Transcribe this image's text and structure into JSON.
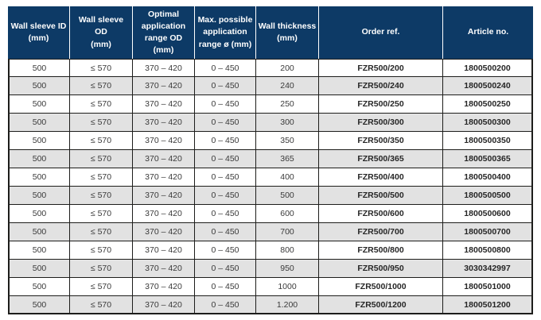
{
  "table": {
    "headers": [
      "Wall sleeve ID\n(mm)",
      "Wall sleeve OD\n(mm)",
      "Optimal\napplication\nrange OD\n(mm)",
      "Max. possible\napplication\nrange ø (mm)",
      "Wall thickness\n(mm)",
      "Order ref.",
      "Article no."
    ],
    "column_keys": [
      "wall-sleeve-id",
      "wall-sleeve-od",
      "optimal-application-range-od",
      "max-possible-application-range",
      "wall-thickness",
      "order-ref",
      "article-no"
    ],
    "bold_columns": [
      5,
      6
    ],
    "rows": [
      [
        "500",
        "≤ 570",
        "370 – 420",
        "0 – 450",
        "200",
        "FZR500/200",
        "1800500200"
      ],
      [
        "500",
        "≤ 570",
        "370 – 420",
        "0 – 450",
        "240",
        "FZR500/240",
        "1800500240"
      ],
      [
        "500",
        "≤ 570",
        "370 – 420",
        "0 – 450",
        "250",
        "FZR500/250",
        "1800500250"
      ],
      [
        "500",
        "≤ 570",
        "370 – 420",
        "0 – 450",
        "300",
        "FZR500/300",
        "1800500300"
      ],
      [
        "500",
        "≤ 570",
        "370 – 420",
        "0 – 450",
        "350",
        "FZR500/350",
        "1800500350"
      ],
      [
        "500",
        "≤ 570",
        "370 – 420",
        "0 – 450",
        "365",
        "FZR500/365",
        "1800500365"
      ],
      [
        "500",
        "≤ 570",
        "370 – 420",
        "0 – 450",
        "400",
        "FZR500/400",
        "1800500400"
      ],
      [
        "500",
        "≤ 570",
        "370 – 420",
        "0 – 450",
        "500",
        "FZR500/500",
        "1800500500"
      ],
      [
        "500",
        "≤ 570",
        "370 – 420",
        "0 – 450",
        "600",
        "FZR500/600",
        "1800500600"
      ],
      [
        "500",
        "≤ 570",
        "370 – 420",
        "0 – 450",
        "700",
        "FZR500/700",
        "1800500700"
      ],
      [
        "500",
        "≤ 570",
        "370 – 420",
        "0 – 450",
        "800",
        "FZR500/800",
        "1800500800"
      ],
      [
        "500",
        "≤ 570",
        "370 – 420",
        "0 – 450",
        "950",
        "FZR500/950",
        "3030342997"
      ],
      [
        "500",
        "≤ 570",
        "370 – 420",
        "0 – 450",
        "1000",
        "FZR500/1000",
        "1800501000"
      ],
      [
        "500",
        "≤ 570",
        "370 – 420",
        "0 – 450",
        "1.200",
        "FZR500/1200",
        "1800501200"
      ]
    ]
  },
  "colors": {
    "header_bg": "#0d3a66",
    "header_text": "#ffffff",
    "stripe_bg": "#e2e2e2",
    "row_bg": "#ffffff",
    "border": "#1d1d1b",
    "body_text": "#3a3a3a"
  }
}
